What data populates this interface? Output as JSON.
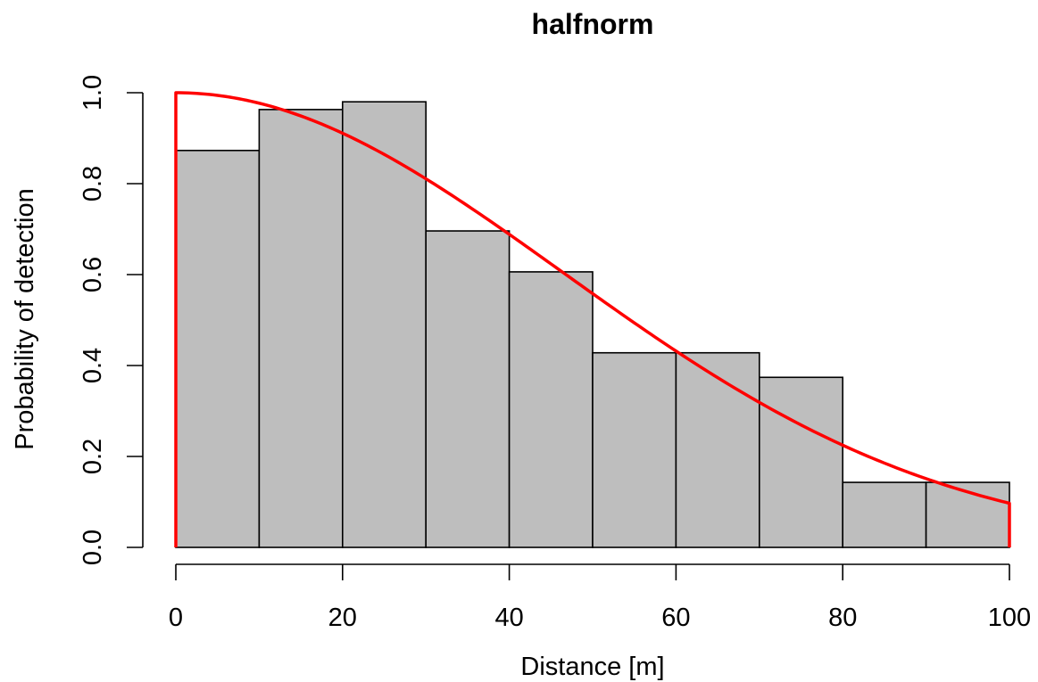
{
  "chart_data": {
    "type": "bar",
    "title": "halfnorm",
    "xlabel": "Distance [m]",
    "ylabel": "Probability of detection",
    "xlim": [
      0,
      100
    ],
    "ylim": [
      0,
      1.0
    ],
    "grid": false,
    "bin_edges": [
      0,
      10,
      20,
      30,
      40,
      50,
      60,
      70,
      80,
      90,
      100
    ],
    "values": [
      0.873,
      0.963,
      0.98,
      0.696,
      0.606,
      0.428,
      0.428,
      0.374,
      0.143,
      0.143
    ],
    "xticks": [
      "0",
      "20",
      "40",
      "60",
      "80",
      "100"
    ],
    "xtick_values": [
      0,
      20,
      40,
      60,
      80,
      100
    ],
    "yticks": [
      "0.0",
      "0.2",
      "0.4",
      "0.6",
      "0.8",
      "1.0"
    ],
    "ytick_values": [
      0.0,
      0.2,
      0.4,
      0.6,
      0.8,
      1.0
    ],
    "bar_fill": "#bebebe",
    "bar_stroke": "#000000",
    "curve": {
      "type": "line",
      "function": "halfnorm",
      "sigma": 46.3,
      "color": "#ff0000",
      "x_range": [
        0,
        100
      ]
    }
  }
}
